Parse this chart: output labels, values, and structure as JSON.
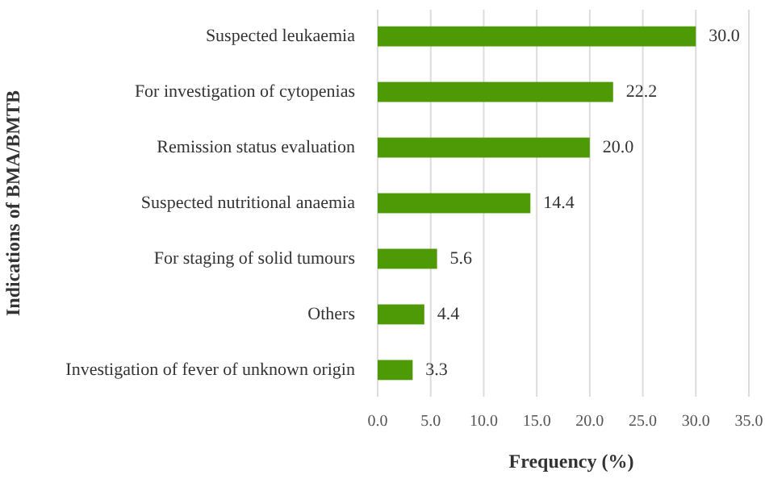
{
  "chart_data": {
    "type": "bar",
    "orientation": "horizontal",
    "ylabel": "Indications of BMA/BMTB",
    "xlabel": "Frequency (%)",
    "categories": [
      "Suspected leukaemia",
      "For investigation of cytopenias",
      "Remission status evaluation",
      "Suspected nutritional anaemia",
      "For staging of solid tumours",
      "Others",
      "Investigation of fever of unknown origin"
    ],
    "values": [
      30.0,
      22.2,
      20.0,
      14.4,
      5.6,
      4.4,
      3.3
    ],
    "color": "#4e9a06",
    "xlim": [
      0,
      35
    ],
    "xticks": [
      {
        "value": 0,
        "label": "0.0"
      },
      {
        "value": 5,
        "label": "5.0"
      },
      {
        "value": 10,
        "label": "10.0"
      },
      {
        "value": 15,
        "label": "15.0"
      },
      {
        "value": 20,
        "label": "20.0"
      },
      {
        "value": 25,
        "label": "25.0"
      },
      {
        "value": 30,
        "label": "30.0"
      },
      {
        "value": 35,
        "label": "35.0"
      }
    ],
    "value_labels": [
      "30.0",
      "22.2",
      "20.0",
      "14.4",
      "5.6",
      "4.4",
      "3.3"
    ],
    "grid": "x"
  }
}
